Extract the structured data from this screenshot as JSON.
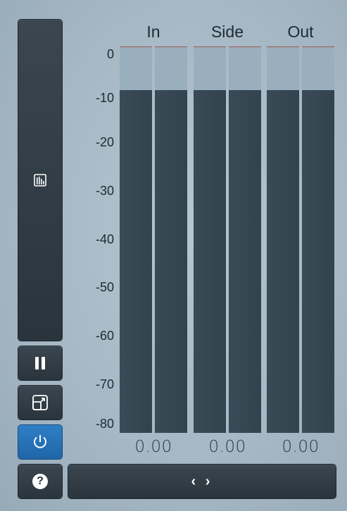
{
  "sidebar": {
    "analyzer_icon": "bar-meter-icon",
    "pause_icon": "pause-icon",
    "resize_icon": "resize-icon",
    "power_icon": "power-icon",
    "help_label": "?"
  },
  "columns": [
    {
      "title": "In",
      "value": "0.00",
      "meter_left_level": 0.889,
      "meter_right_level": 0.889
    },
    {
      "title": "Side",
      "value": "0.00",
      "meter_left_level": 0.889,
      "meter_right_level": 0.889
    },
    {
      "title": "Out",
      "value": "0.00",
      "meter_left_level": 0.889,
      "meter_right_level": 0.889
    }
  ],
  "scale": {
    "ticks": [
      "0",
      "-10",
      "-20",
      "-30",
      "-40",
      "-50",
      "-60",
      "-70",
      "-80"
    ]
  },
  "bottom": {
    "expand_label": "‹ ›"
  },
  "colors": {
    "accent": "#2f7fc6",
    "button_dark": "#2f3a43",
    "meter_fill": "#36464f"
  }
}
